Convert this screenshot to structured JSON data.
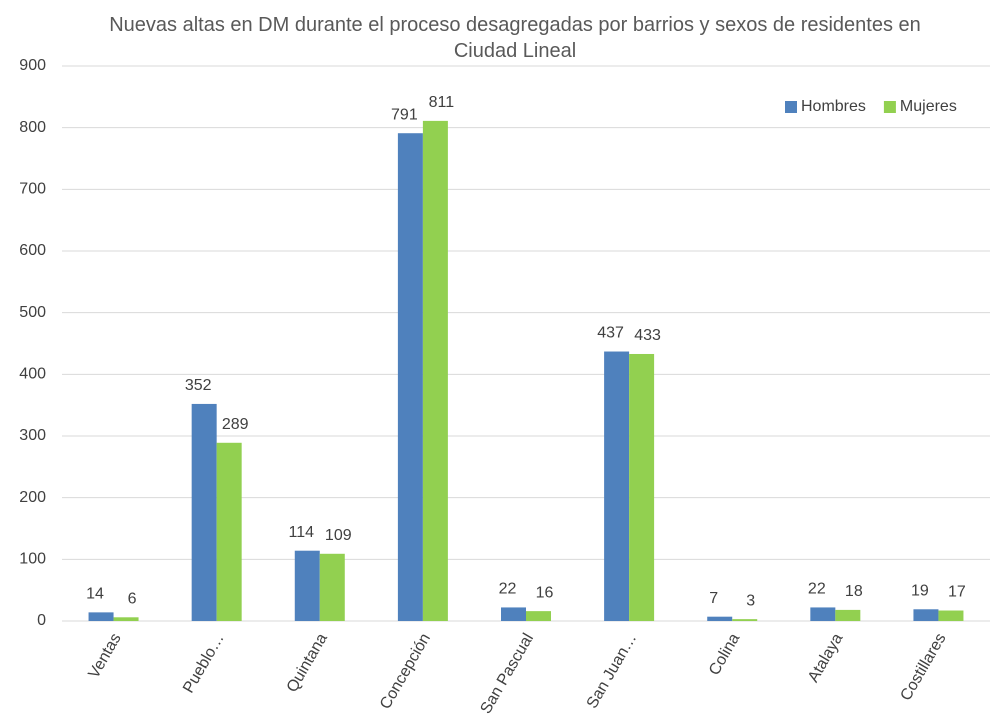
{
  "chart_data": {
    "type": "bar",
    "title": "Nuevas altas en DM durante el proceso desagregadas por barrios y sexos de residentes en Ciudad Lineal",
    "categories": [
      "Ventas",
      "Pueblo…",
      "Quintana",
      "Concepción",
      "San Pascual",
      "San Juan…",
      "Colina",
      "Atalaya",
      "Costillares"
    ],
    "series": [
      {
        "name": "Hombres",
        "color": "#4f81bd",
        "values": [
          14,
          352,
          114,
          791,
          22,
          437,
          7,
          22,
          19
        ]
      },
      {
        "name": "Mujeres",
        "color": "#92d050",
        "values": [
          6,
          289,
          109,
          811,
          16,
          433,
          3,
          18,
          17
        ]
      }
    ],
    "ylim": [
      0,
      900
    ],
    "yticks": [
      0,
      100,
      200,
      300,
      400,
      500,
      600,
      700,
      800,
      900
    ],
    "grid": true,
    "legend": "top-right"
  }
}
